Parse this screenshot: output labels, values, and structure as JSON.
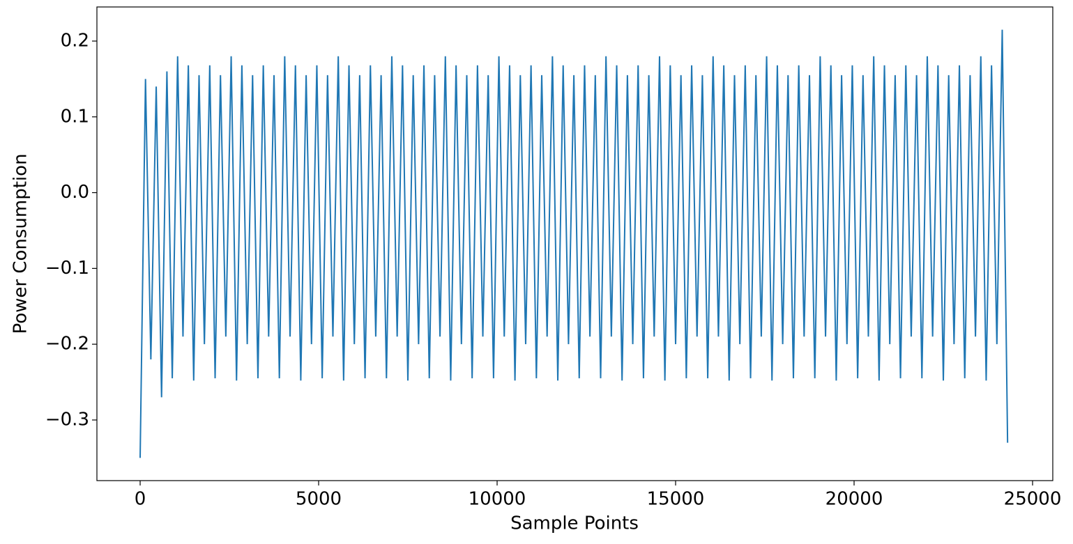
{
  "chart_data": {
    "type": "line",
    "xlabel": "Sample Points",
    "ylabel": "Power Consumption",
    "color": "#1f77b4",
    "x": [
      0,
      150,
      300,
      450,
      600,
      750,
      900,
      1050,
      1200,
      1350,
      1500,
      1650,
      1800,
      1950,
      2100,
      2250,
      2400,
      2550,
      2700,
      2850,
      3000,
      3150,
      3300,
      3450,
      3600,
      3750,
      3900,
      4050,
      4200,
      4350,
      4500,
      4650,
      4800,
      4950,
      5100,
      5250,
      5400,
      5550,
      5700,
      5850,
      6000,
      6150,
      6300,
      6450,
      6600,
      6750,
      6900,
      7050,
      7200,
      7350,
      7500,
      7650,
      7800,
      7950,
      8100,
      8250,
      8400,
      8550,
      8700,
      8850,
      9000,
      9150,
      9300,
      9450,
      9600,
      9750,
      9900,
      10050,
      10200,
      10350,
      10500,
      10650,
      10800,
      10950,
      11100,
      11250,
      11400,
      11550,
      11700,
      11850,
      12000,
      12150,
      12300,
      12450,
      12600,
      12750,
      12900,
      13050,
      13200,
      13350,
      13500,
      13650,
      13800,
      13950,
      14100,
      14250,
      14400,
      14550,
      14700,
      14850,
      15000,
      15150,
      15300,
      15450,
      15600,
      15750,
      15900,
      16050,
      16200,
      16350,
      16500,
      16650,
      16800,
      16950,
      17100,
      17250,
      17400,
      17550,
      17700,
      17850,
      18000,
      18150,
      18300,
      18450,
      18600,
      18750,
      18900,
      19050,
      19200,
      19350,
      19500,
      19650,
      19800,
      19950,
      20100,
      20250,
      20400,
      20550,
      20700,
      20850,
      21000,
      21150,
      21300,
      21450,
      21600,
      21750,
      21900,
      22050,
      22200,
      22350,
      22500,
      22650,
      22800,
      22950,
      23100,
      23250,
      23400,
      23550,
      23700,
      23850,
      24000,
      24150,
      24300
    ],
    "values": [
      -0.35,
      0.15,
      -0.22,
      0.14,
      -0.27,
      0.16,
      -0.245,
      0.18,
      -0.19,
      0.168,
      -0.248,
      0.155,
      -0.2,
      0.168,
      -0.245,
      0.155,
      -0.19,
      0.18,
      -0.248,
      0.168,
      -0.2,
      0.155,
      -0.245,
      0.168,
      -0.19,
      0.155,
      -0.245,
      0.18,
      -0.19,
      0.168,
      -0.248,
      0.155,
      -0.2,
      0.168,
      -0.245,
      0.155,
      -0.19,
      0.18,
      -0.248,
      0.168,
      -0.2,
      0.155,
      -0.245,
      0.168,
      -0.19,
      0.155,
      -0.245,
      0.18,
      -0.19,
      0.168,
      -0.248,
      0.155,
      -0.2,
      0.168,
      -0.245,
      0.155,
      -0.19,
      0.18,
      -0.248,
      0.168,
      -0.2,
      0.155,
      -0.245,
      0.168,
      -0.19,
      0.155,
      -0.245,
      0.18,
      -0.19,
      0.168,
      -0.248,
      0.155,
      -0.2,
      0.168,
      -0.245,
      0.155,
      -0.19,
      0.18,
      -0.248,
      0.168,
      -0.2,
      0.155,
      -0.245,
      0.168,
      -0.19,
      0.155,
      -0.245,
      0.18,
      -0.19,
      0.168,
      -0.248,
      0.155,
      -0.2,
      0.168,
      -0.245,
      0.155,
      -0.19,
      0.18,
      -0.248,
      0.168,
      -0.2,
      0.155,
      -0.245,
      0.168,
      -0.19,
      0.155,
      -0.245,
      0.18,
      -0.19,
      0.168,
      -0.248,
      0.155,
      -0.2,
      0.168,
      -0.245,
      0.155,
      -0.19,
      0.18,
      -0.248,
      0.168,
      -0.2,
      0.155,
      -0.245,
      0.168,
      -0.19,
      0.155,
      -0.245,
      0.18,
      -0.19,
      0.168,
      -0.248,
      0.155,
      -0.2,
      0.168,
      -0.245,
      0.155,
      -0.19,
      0.18,
      -0.248,
      0.168,
      -0.2,
      0.155,
      -0.245,
      0.168,
      -0.19,
      0.155,
      -0.245,
      0.18,
      -0.19,
      0.168,
      -0.248,
      0.155,
      -0.2,
      0.168,
      -0.245,
      0.155,
      -0.19,
      0.18,
      -0.248,
      0.168,
      -0.2,
      0.215,
      -0.33
    ],
    "xlim": [
      -1211,
      25566
    ],
    "xticks": [
      0,
      5000,
      10000,
      15000,
      20000,
      25000
    ],
    "ylim": [
      -0.38,
      0.245
    ],
    "yticks": [
      {
        "value": -0.3,
        "label": "−0.3"
      },
      {
        "value": -0.2,
        "label": "−0.2"
      },
      {
        "value": -0.1,
        "label": "−0.1"
      },
      {
        "value": 0,
        "label": "0.0"
      },
      0.1,
      0.2
    ]
  }
}
